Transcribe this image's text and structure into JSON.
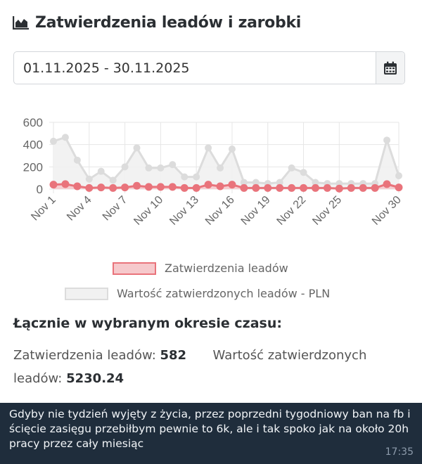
{
  "header": {
    "icon": "area-chart-icon",
    "title": "Zatwierdzenia leadów i zarobki"
  },
  "date_range": {
    "value": "01.11.2025 - 30.11.2025",
    "calendar_icon": "calendar-icon"
  },
  "colors": {
    "leads_line": "#e9737b",
    "leads_fill": "#f6c9cc",
    "value_line": "#dcdcdc",
    "value_fill": "#f1f1f1",
    "grid": "#e6e6e6",
    "message_bg": "#1f2d3c"
  },
  "chart_data": {
    "type": "line",
    "ylim": [
      0,
      600
    ],
    "y_ticks": [
      "0",
      "200",
      "400",
      "600"
    ],
    "x": [
      "Nov 1",
      "Nov 2",
      "Nov 3",
      "Nov 4",
      "Nov 5",
      "Nov 6",
      "Nov 7",
      "Nov 8",
      "Nov 9",
      "Nov 10",
      "Nov 11",
      "Nov 12",
      "Nov 13",
      "Nov 14",
      "Nov 15",
      "Nov 16",
      "Nov 17",
      "Nov 18",
      "Nov 19",
      "Nov 20",
      "Nov 21",
      "Nov 22",
      "Nov 23",
      "Nov 24",
      "Nov 25",
      "Nov 26",
      "Nov 27",
      "Nov 28",
      "Nov 29",
      "Nov 30"
    ],
    "x_tick_labels": [
      "Nov 1",
      "Nov 4",
      "Nov 7",
      "Nov 10",
      "Nov 13",
      "Nov 16",
      "Nov 19",
      "Nov 22",
      "Nov 25",
      "Nov 30"
    ],
    "grid": true,
    "series": [
      {
        "name": "Zatwierdzenia leadów",
        "values": [
          40,
          45,
          25,
          10,
          15,
          10,
          15,
          30,
          20,
          20,
          20,
          10,
          10,
          40,
          25,
          40,
          10,
          10,
          10,
          10,
          10,
          10,
          10,
          10,
          5,
          10,
          10,
          10,
          45,
          15
        ]
      },
      {
        "name": "Wartość zatwierdzonych leadów - PLN",
        "values": [
          430,
          465,
          260,
          90,
          160,
          80,
          200,
          370,
          190,
          190,
          220,
          110,
          110,
          370,
          190,
          360,
          60,
          60,
          50,
          60,
          190,
          150,
          60,
          50,
          50,
          50,
          50,
          50,
          440,
          120
        ]
      }
    ]
  },
  "summary": {
    "heading": "Łącznie w wybranym okresie czasu:",
    "leads_label": "Zatwierdzenia leadów:",
    "leads_value": "582",
    "value_label_part1": "Wartość zatwierdzonych",
    "value_label_part2": "leadów:",
    "value_value": "5230.24"
  },
  "message": {
    "text": "Gdyby nie tydzień wyjęty z życia, przez poprzedni tygodniowy ban na fb i ścięcie zasięgu przebiłbym pewnie to 6k, ale i tak spoko jak na około 20h pracy przez cały miesiąc",
    "time": "17:35"
  }
}
